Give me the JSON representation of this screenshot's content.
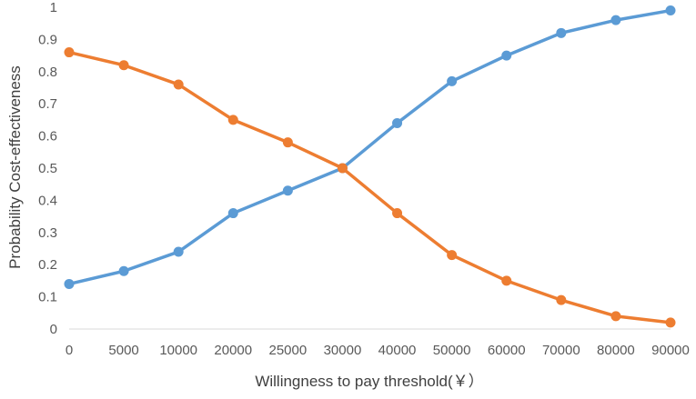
{
  "chart_data": {
    "type": "line",
    "title": "",
    "xlabel": "Willingness to pay threshold(￥）",
    "ylabel": "Probability Cost-effectiveness",
    "categories": [
      "0",
      "5000",
      "10000",
      "20000",
      "25000",
      "30000",
      "40000",
      "50000",
      "60000",
      "70000",
      "80000",
      "90000"
    ],
    "ylim": [
      0,
      1
    ],
    "yticks": [
      "0",
      "0.1",
      "0.2",
      "0.3",
      "0.4",
      "0.5",
      "0.6",
      "0.7",
      "0.8",
      "0.9",
      "1"
    ],
    "grid": false,
    "legend": "none",
    "series": [
      {
        "color": "#5B9BD5",
        "values": [
          0.14,
          0.18,
          0.24,
          0.36,
          0.43,
          0.5,
          0.64,
          0.77,
          0.85,
          0.92,
          0.96,
          0.99
        ]
      },
      {
        "color": "#ED7D31",
        "values": [
          0.86,
          0.82,
          0.76,
          0.65,
          0.58,
          0.5,
          0.36,
          0.23,
          0.15,
          0.09,
          0.04,
          0.02
        ]
      }
    ]
  }
}
